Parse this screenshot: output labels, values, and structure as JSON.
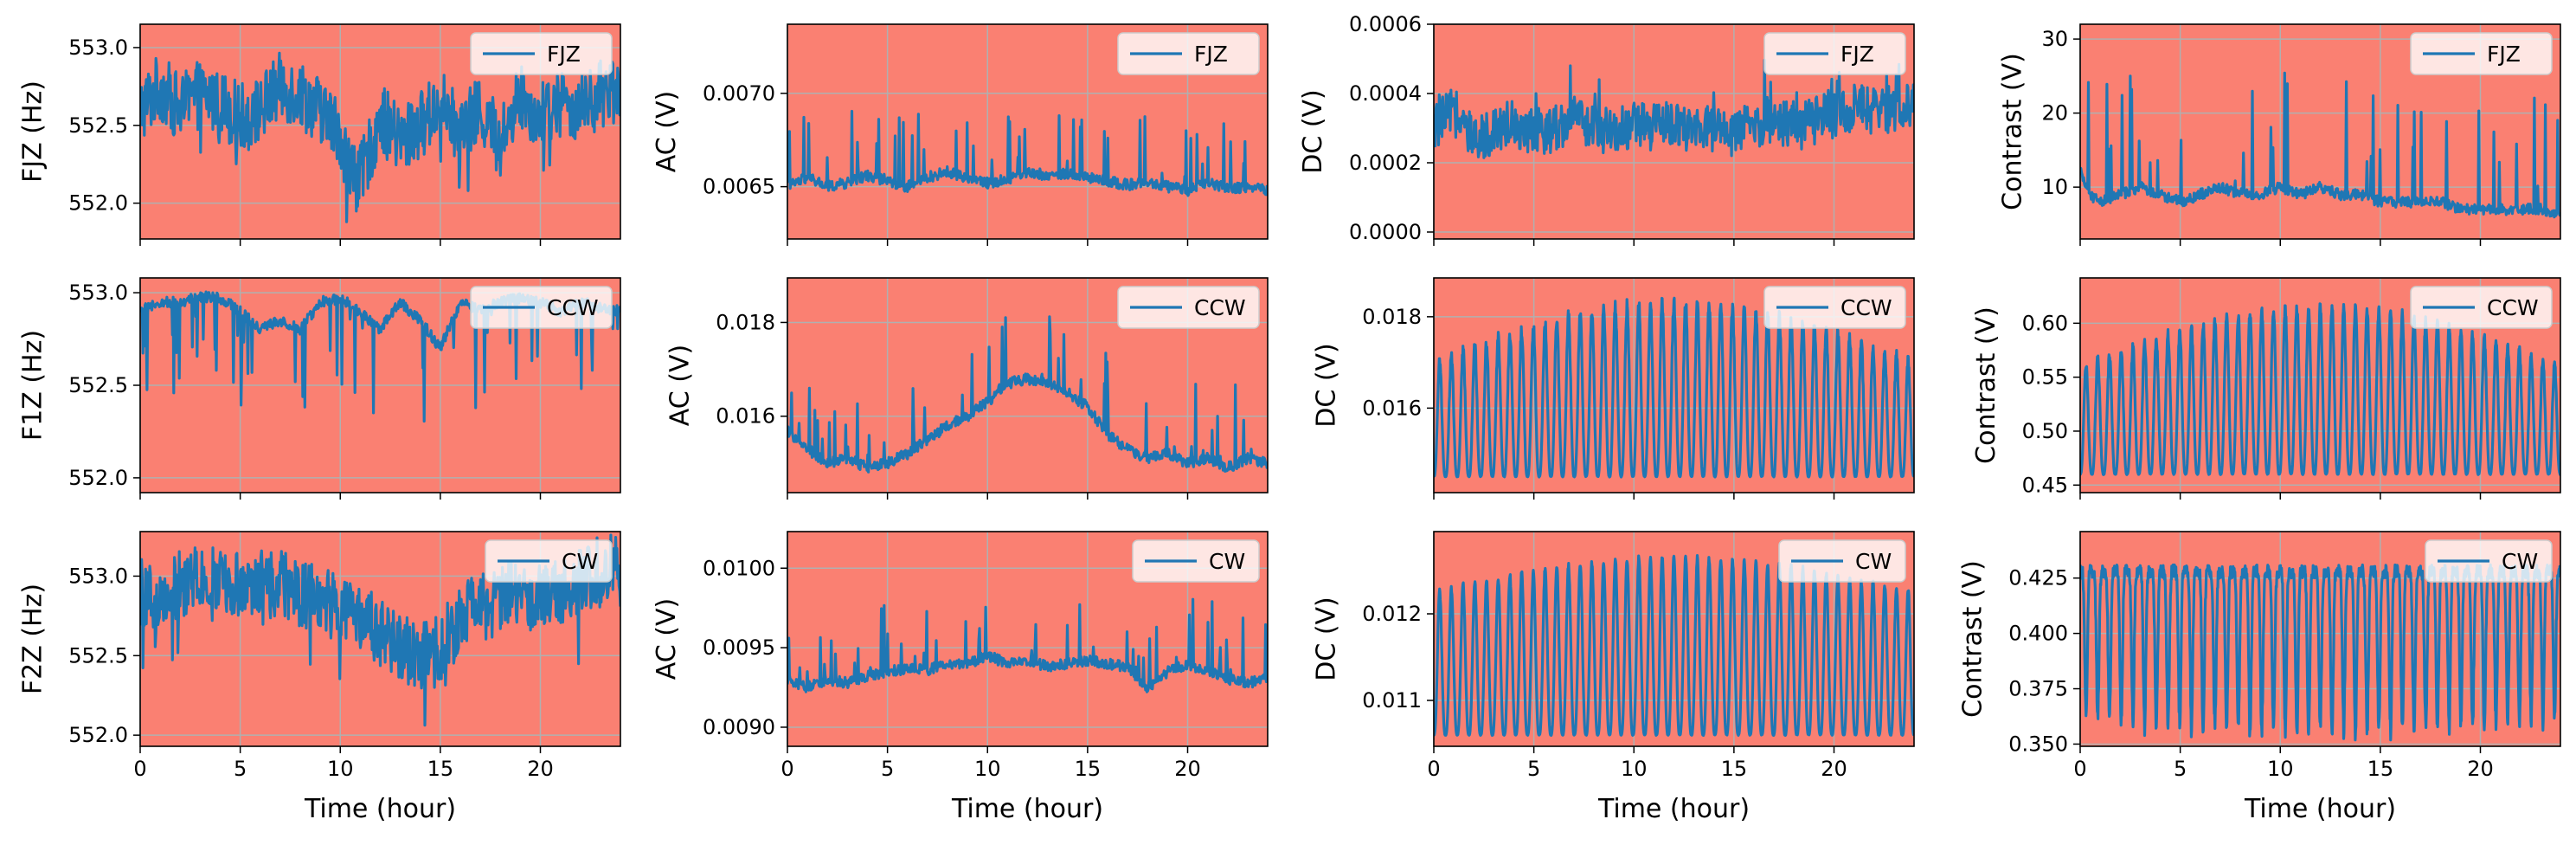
{
  "figure": {
    "background": "#ffffff",
    "axes_facecolor": "#fa8072",
    "grid_color": "#b0b0b0",
    "line_color": "#1f77b4",
    "x_label": "Time (hour)",
    "x_ticks": [
      "0",
      "5",
      "10",
      "15",
      "20"
    ],
    "xlim": [
      0,
      24
    ]
  },
  "chart_data": [
    {
      "type": "line",
      "row": 0,
      "col": 0,
      "ylabel": "FJZ (Hz)",
      "legend": "FJZ",
      "legend_position": "upper-right",
      "grid": true,
      "xlim": [
        0,
        24
      ],
      "ylim": [
        551.77,
        553.15
      ],
      "yticks": [
        552.0,
        552.5,
        553.0
      ],
      "ytick_labels": [
        "552.0",
        "552.5",
        "553.0"
      ],
      "series": [
        {
          "x": [
            0,
            1,
            2,
            3,
            4,
            5,
            6,
            7,
            8,
            9,
            10,
            10.5,
            11,
            11.5,
            12,
            13,
            14,
            15,
            16,
            17,
            18,
            19,
            20,
            21,
            22,
            23,
            24
          ],
          "y": [
            552.6,
            552.75,
            552.6,
            552.7,
            552.65,
            552.55,
            552.6,
            552.75,
            552.7,
            552.6,
            552.45,
            552.2,
            552.15,
            552.35,
            552.55,
            552.4,
            552.5,
            552.65,
            552.45,
            552.6,
            552.4,
            552.7,
            552.55,
            552.65,
            552.6,
            552.7,
            552.75
          ]
        }
      ]
    },
    {
      "type": "line",
      "row": 0,
      "col": 1,
      "ylabel": "AC (V)",
      "legend": "FJZ",
      "legend_position": "upper-right",
      "grid": true,
      "xlim": [
        0,
        24
      ],
      "ylim": [
        0.00622,
        0.00737
      ],
      "yticks": [
        0.0065,
        0.007
      ],
      "ytick_labels": [
        "0.0065",
        "0.0070"
      ],
      "series": [
        {
          "x": [
            0,
            1,
            2,
            3,
            4,
            5,
            6,
            7,
            8,
            9,
            10,
            11,
            12,
            13,
            14,
            15,
            16,
            17,
            18,
            19,
            20,
            21,
            22,
            23,
            24
          ],
          "y": [
            0.0065,
            0.00655,
            0.0065,
            0.00652,
            0.00656,
            0.00653,
            0.0065,
            0.00655,
            0.00658,
            0.00655,
            0.00652,
            0.00654,
            0.00658,
            0.00656,
            0.00657,
            0.00655,
            0.00653,
            0.00651,
            0.00652,
            0.0065,
            0.00648,
            0.00652,
            0.00649,
            0.0065,
            0.00648
          ]
        }
      ]
    },
    {
      "type": "line",
      "row": 0,
      "col": 2,
      "ylabel": "DC (V)",
      "legend": "FJZ",
      "legend_position": "upper-right",
      "grid": true,
      "xlim": [
        0,
        24
      ],
      "ylim": [
        -2e-05,
        0.0006
      ],
      "yticks": [
        0.0,
        0.0002,
        0.0004,
        0.0006
      ],
      "ytick_labels": [
        "0.0000",
        "0.0002",
        "0.0004",
        "0.0006"
      ],
      "series": [
        {
          "x": [
            0,
            1,
            2,
            3,
            4,
            5,
            6,
            7,
            8,
            9,
            10,
            11,
            12,
            13,
            14,
            15,
            16,
            17,
            18,
            19,
            20,
            21,
            22,
            23,
            24
          ],
          "y": [
            0.0003,
            0.00035,
            0.00025,
            0.0003,
            0.00032,
            0.00028,
            0.0003,
            0.00033,
            0.0003,
            0.00029,
            0.00031,
            0.0003,
            0.00032,
            0.00029,
            0.0003,
            0.00028,
            0.00031,
            0.00033,
            0.0003,
            0.00032,
            0.00034,
            0.00036,
            0.00035,
            0.00034,
            0.00038
          ]
        }
      ]
    },
    {
      "type": "line",
      "row": 0,
      "col": 3,
      "ylabel": "Contrast (V)",
      "legend": "FJZ",
      "legend_position": "upper-right",
      "grid": true,
      "xlim": [
        0,
        24
      ],
      "ylim": [
        3,
        32
      ],
      "yticks": [
        10,
        20,
        30
      ],
      "ytick_labels": [
        "10",
        "20",
        "30"
      ],
      "series": [
        {
          "x": [
            0,
            0.5,
            1,
            2,
            3,
            4,
            5,
            6,
            7,
            8,
            9,
            10,
            11,
            12,
            13,
            14,
            15,
            16,
            17,
            18,
            19,
            20,
            21,
            22,
            23,
            24
          ],
          "y": [
            12,
            9,
            8,
            9,
            10,
            9,
            8,
            9,
            10,
            9,
            9,
            10,
            9,
            10,
            9,
            9,
            8,
            8,
            8,
            8,
            7,
            7,
            7,
            7,
            7,
            6
          ]
        }
      ]
    },
    {
      "type": "line",
      "row": 1,
      "col": 0,
      "ylabel": "F1Z (Hz)",
      "legend": "CCW",
      "legend_position": "upper-right",
      "grid": true,
      "xlim": [
        0,
        24
      ],
      "ylim": [
        551.92,
        553.08
      ],
      "yticks": [
        552.0,
        552.5,
        553.0
      ],
      "ytick_labels": [
        "552.0",
        "552.5",
        "553.0"
      ],
      "series": [
        {
          "x": [
            0,
            1,
            2,
            3,
            4,
            5,
            6,
            7,
            8,
            9,
            10,
            11,
            12,
            13,
            14,
            15,
            16,
            17,
            18,
            19,
            20,
            21,
            22,
            23,
            24
          ],
          "y": [
            552.9,
            552.95,
            552.95,
            552.98,
            552.97,
            552.9,
            552.8,
            552.85,
            552.8,
            552.95,
            552.97,
            552.9,
            552.8,
            552.95,
            552.85,
            552.7,
            552.95,
            552.9,
            552.95,
            552.97,
            552.95,
            552.9,
            552.95,
            552.92,
            552.9
          ]
        }
      ]
    },
    {
      "type": "line",
      "row": 1,
      "col": 1,
      "ylabel": "AC (V)",
      "legend": "CCW",
      "legend_position": "upper-right",
      "grid": true,
      "xlim": [
        0,
        24
      ],
      "ylim": [
        0.01437,
        0.01895
      ],
      "yticks": [
        0.016,
        0.018
      ],
      "ytick_labels": [
        "0.016",
        "0.018"
      ],
      "series": [
        {
          "x": [
            0,
            1,
            2,
            3,
            4,
            5,
            6,
            7,
            8,
            9,
            10,
            11,
            12,
            13,
            14,
            15,
            16,
            17,
            18,
            19,
            20,
            21,
            22,
            23,
            24
          ],
          "y": [
            0.0157,
            0.0153,
            0.015,
            0.0151,
            0.0149,
            0.015,
            0.0152,
            0.0155,
            0.0158,
            0.016,
            0.0163,
            0.0167,
            0.0168,
            0.0167,
            0.0165,
            0.0162,
            0.0156,
            0.0153,
            0.0151,
            0.0152,
            0.015,
            0.0151,
            0.0149,
            0.0151,
            0.015
          ]
        }
      ]
    },
    {
      "type": "line",
      "row": 1,
      "col": 2,
      "ylabel": "DC (V)",
      "legend": "CCW",
      "legend_position": "upper-right",
      "grid": true,
      "xlim": [
        0,
        24
      ],
      "ylim": [
        0.01415,
        0.01885
      ],
      "yticks": [
        0.016,
        0.018
      ],
      "ytick_labels": [
        "0.016",
        "0.018"
      ],
      "series": [
        {
          "x": [
            0,
            24
          ],
          "y": [
            0.0145,
            0.0145
          ]
        }
      ]
    },
    {
      "type": "line",
      "row": 1,
      "col": 3,
      "ylabel": "Contrast (V)",
      "legend": "CCW",
      "legend_position": "upper-right",
      "grid": true,
      "xlim": [
        0,
        24
      ],
      "ylim": [
        0.443,
        0.642
      ],
      "yticks": [
        0.45,
        0.5,
        0.55,
        0.6
      ],
      "ytick_labels": [
        "0.45",
        "0.50",
        "0.55",
        "0.60"
      ],
      "series": [
        {
          "x": [
            0,
            24
          ],
          "y": [
            0.46,
            0.46
          ]
        }
      ]
    },
    {
      "type": "line",
      "row": 2,
      "col": 0,
      "ylabel": "F2Z (Hz)",
      "legend": "CW",
      "legend_position": "upper-right",
      "grid": true,
      "xlim": [
        0,
        24
      ],
      "ylim": [
        551.93,
        553.28
      ],
      "yticks": [
        552.0,
        552.5,
        553.0
      ],
      "ytick_labels": [
        "552.0",
        "552.5",
        "553.0"
      ],
      "series": [
        {
          "x": [
            0,
            1,
            2,
            3,
            4,
            5,
            6,
            7,
            8,
            9,
            10,
            11,
            12,
            13,
            14,
            15,
            16,
            17,
            18,
            19,
            20,
            21,
            22,
            23,
            24
          ],
          "y": [
            552.9,
            552.85,
            552.95,
            553.0,
            553.0,
            552.95,
            552.95,
            552.95,
            552.9,
            552.85,
            552.8,
            552.75,
            552.65,
            552.55,
            552.5,
            552.55,
            552.75,
            552.8,
            552.85,
            552.9,
            552.85,
            552.9,
            552.95,
            553.05,
            553.1
          ]
        }
      ]
    },
    {
      "type": "line",
      "row": 2,
      "col": 1,
      "ylabel": "AC (V)",
      "legend": "CW",
      "legend_position": "upper-right",
      "grid": true,
      "xlim": [
        0,
        24
      ],
      "ylim": [
        0.00888,
        0.01023
      ],
      "yticks": [
        0.009,
        0.0095,
        0.01
      ],
      "ytick_labels": [
        "0.0090",
        "0.0095",
        "0.0100"
      ],
      "series": [
        {
          "x": [
            0,
            1,
            2,
            3,
            4,
            5,
            6,
            7,
            8,
            9,
            10,
            11,
            12,
            13,
            14,
            15,
            16,
            17,
            18,
            19,
            20,
            21,
            22,
            23,
            24
          ],
          "y": [
            0.0093,
            0.00925,
            0.0093,
            0.00928,
            0.00932,
            0.00935,
            0.00937,
            0.00936,
            0.0094,
            0.0094,
            0.00945,
            0.0094,
            0.00942,
            0.00938,
            0.0094,
            0.00942,
            0.0094,
            0.00938,
            0.00925,
            0.00935,
            0.0094,
            0.00935,
            0.0093,
            0.00928,
            0.0093
          ]
        }
      ]
    },
    {
      "type": "line",
      "row": 2,
      "col": 2,
      "ylabel": "DC (V)",
      "legend": "CW",
      "legend_position": "upper-right",
      "grid": true,
      "xlim": [
        0,
        24
      ],
      "ylim": [
        0.01047,
        0.01295
      ],
      "yticks": [
        0.011,
        0.012
      ],
      "ytick_labels": [
        "0.011",
        "0.012"
      ],
      "series": [
        {
          "x": [
            0,
            24
          ],
          "y": [
            0.0106,
            0.0106
          ]
        }
      ]
    },
    {
      "type": "line",
      "row": 2,
      "col": 3,
      "ylabel": "Contrast (V)",
      "legend": "CW",
      "legend_position": "upper-right",
      "grid": true,
      "xlim": [
        0,
        24
      ],
      "ylim": [
        0.349,
        0.446
      ],
      "yticks": [
        0.35,
        0.375,
        0.4,
        0.425
      ],
      "ytick_labels": [
        "0.350",
        "0.375",
        "0.400",
        "0.425"
      ],
      "series": [
        {
          "x": [
            0,
            24
          ],
          "y": [
            0.43,
            0.43
          ]
        }
      ]
    }
  ]
}
